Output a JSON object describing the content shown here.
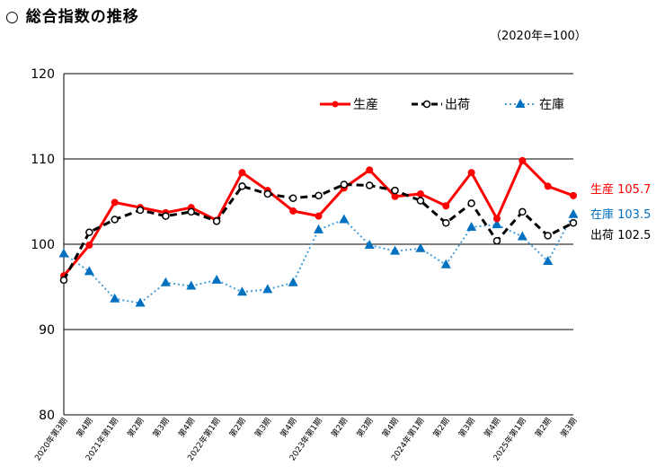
{
  "header": {
    "title": "○ 総合指数の推移",
    "base_note": "（2020年=100）"
  },
  "legend": {
    "production": "生産",
    "shipments": "出荷",
    "inventory": "在庫"
  },
  "end_labels": {
    "production": "生産 105.7",
    "inventory": "在庫 103.5",
    "shipments": "出荷 102.5"
  },
  "colors": {
    "production": "#ff0000",
    "shipments": "#000000",
    "inventory": "#0070c0",
    "inventory_line": "#4a9fd8"
  },
  "chart_data": {
    "type": "line",
    "title": "総合指数の推移",
    "subtitle": "（2020年=100）",
    "xlabel": "",
    "ylabel": "",
    "ylim": [
      80,
      120
    ],
    "yticks": [
      80,
      90,
      100,
      110,
      120
    ],
    "grid": true,
    "legend_position": "top-right inside",
    "categories": [
      "2020年第3期",
      "第4期",
      "2021年第1期",
      "第2期",
      "第3期",
      "第4期",
      "2022年第1期",
      "第2期",
      "第3期",
      "第4期",
      "2023年第1期",
      "第2期",
      "第3期",
      "第4期",
      "2024年第1期",
      "第2期",
      "第3期",
      "第4期",
      "2025年第1期",
      "第2期",
      "第3期"
    ],
    "series": [
      {
        "name": "生産",
        "style": "solid red, filled circle markers",
        "values": [
          96.3,
          99.9,
          104.9,
          104.3,
          103.7,
          104.3,
          102.8,
          108.4,
          106.3,
          103.9,
          103.3,
          106.6,
          108.7,
          105.6,
          105.9,
          104.5,
          108.4,
          103.0,
          109.8,
          106.8,
          105.7
        ]
      },
      {
        "name": "出荷",
        "style": "dashed black, open circle markers",
        "values": [
          95.8,
          101.4,
          102.9,
          104.0,
          103.3,
          103.8,
          102.7,
          106.8,
          105.9,
          105.4,
          105.7,
          107.0,
          106.9,
          106.3,
          105.1,
          102.5,
          104.8,
          100.4,
          103.8,
          101.0,
          102.5
        ]
      },
      {
        "name": "在庫",
        "style": "dotted blue, triangle markers",
        "values": [
          98.9,
          96.8,
          93.6,
          93.1,
          95.5,
          95.1,
          95.8,
          94.4,
          94.7,
          95.5,
          101.7,
          102.9,
          99.9,
          99.2,
          99.5,
          97.6,
          102.0,
          102.3,
          100.9,
          98.0,
          103.5
        ]
      }
    ],
    "annotations": [
      "生産 105.7",
      "在庫 103.5",
      "出荷 102.5"
    ]
  }
}
